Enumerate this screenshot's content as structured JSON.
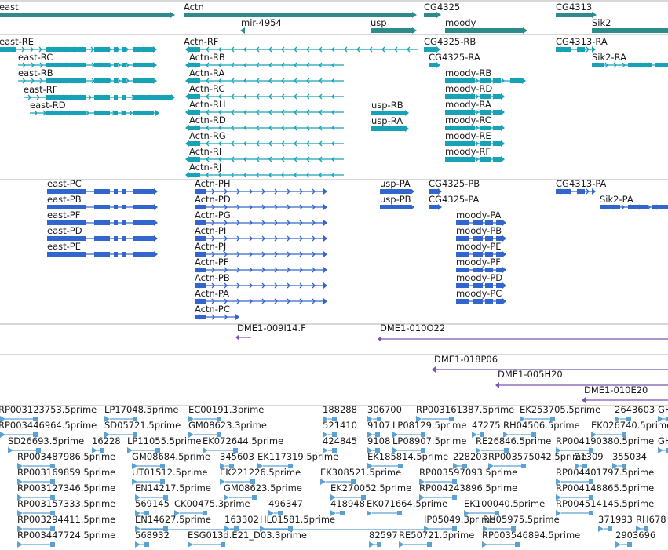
{
  "colors": {
    "gene": "#2e8b8b",
    "annotated_transcript": "#17a2b8",
    "predicted_transcript": "#3366cc",
    "clone": "#7b55b0",
    "est": "#5aa2d6",
    "divider": "#b0b0b0"
  },
  "icons": {
    "strand_forward": "chevron-right",
    "strand_reverse": "chevron-left"
  },
  "tracks": {
    "genes": [
      "east",
      "Actn",
      "mir-4954",
      "usp",
      "CG4325",
      "moody",
      "CG4313",
      "Sik2"
    ],
    "annotated_transcripts": [
      "east-RE",
      "east-RC",
      "east-RB",
      "east-RF",
      "east-RD",
      "Actn-RF",
      "Actn-RB",
      "Actn-RA",
      "Actn-RC",
      "Actn-RH",
      "Actn-RD",
      "Actn-RG",
      "Actn-RI",
      "Actn-RJ",
      "usp-RB",
      "usp-RA",
      "CG4325-RB",
      "CG4325-RA",
      "moody-RB",
      "moody-RD",
      "moody-RA",
      "moody-RC",
      "moody-RE",
      "moody-RF",
      "CG4313-RA",
      "Sik2-RA"
    ],
    "predicted_transcripts": [
      "east-PC",
      "east-PB",
      "east-PF",
      "east-PD",
      "east-PE",
      "Actn-PH",
      "Actn-PD",
      "Actn-PG",
      "Actn-PI",
      "Actn-PJ",
      "Actn-PF",
      "Actn-PB",
      "Actn-PA",
      "Actn-PC",
      "usp-PA",
      "usp-PB",
      "CG4325-PB",
      "CG4325-PA",
      "moody-PA",
      "moody-PB",
      "moody-PE",
      "moody-PF",
      "moody-PD",
      "moody-PC",
      "CG4313-PA",
      "Sik2-PA"
    ],
    "clones": [
      "DME1-009I14.F",
      "DME1-010O22",
      "DME1-018P06",
      "DME1-005H20",
      "DME1-010E20"
    ],
    "ests": [
      "RP003123753.5prime",
      "LP17048.5prime",
      "EC00191.3prime",
      "188288",
      "306700",
      "RP003161387.5prime",
      "EK253705.5prime",
      "2643603",
      "GH",
      "RP003446964.5prime",
      "SD05721.5prime",
      "GM08623.3prime",
      "521410",
      "9107",
      "LP08129.5prime",
      "47275",
      "RH04506.5prime",
      "EK026740.5prime",
      "SD26693.5prime",
      "16228",
      "LP11055.5prime",
      "EK072644.5prime",
      "424845",
      "9108",
      "LP08907.5prime",
      "RE26846.5prime",
      "RP004190380.5prime",
      "GH",
      "RP003487986.5prime",
      "GM08684.5prime",
      "345603",
      "EK117319.5prime",
      "EK185814.5prime",
      "228203",
      "RP003575042.5prime",
      "21309",
      "355034",
      "RP003169859.5prime",
      "UT01512.5prime",
      "EK221226.5prime",
      "EK308521.5prime",
      "RP003597093.5prime",
      "RP004401797.5prime",
      "RP003127346.5prime",
      "EN14217.5prime",
      "GM08623.5prime",
      "EK270052.5prime",
      "RP004243896.5prime",
      "RP004148865.5prime",
      "RP003157333.5prime",
      "569145",
      "CK00475.3prime",
      "496347",
      "418948",
      "EK071664.5prime",
      "EK100040.5prime",
      "RP004514145.5prime",
      "RP003294411.5prime",
      "EN14627.5prime",
      "163302",
      "HL01581.5prime",
      "IP05049.3prime",
      "RH05975.5prime",
      "371993",
      "RH678",
      "RP003447724.5prime",
      "568932",
      "ESG013d.E21_D03.3prime",
      "82597",
      "RE50721.5prime",
      "RP003546894.5prime",
      "2903696"
    ]
  }
}
